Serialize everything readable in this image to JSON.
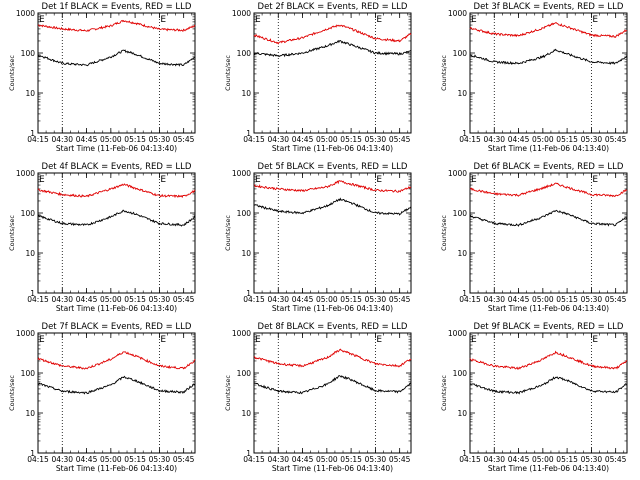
{
  "chart_data": [
    {
      "type": "line",
      "title": "Det 1f BLACK = Events, RED = LLD",
      "xlabel": "Start Time (11-Feb-06 04:13:40)",
      "ylabel": "Counts/sec",
      "yscale": "log",
      "ylim": [
        1,
        1000
      ],
      "xlim": [
        "04:15",
        "05:52"
      ],
      "x_ticks": [
        "04:15",
        "04:30",
        "04:45",
        "05:00",
        "05:15",
        "05:30",
        "05:45"
      ],
      "y_ticks": [
        "1",
        "10",
        "100",
        "1000"
      ],
      "markers": {
        "dotted_vlines": [
          "04:30",
          "05:30"
        ],
        "edge_labels": [
          {
            "text": "E",
            "x": "04:15"
          },
          {
            "text": "E",
            "x": "05:30"
          }
        ]
      },
      "series": [
        {
          "name": "LLD",
          "color": "#e00000",
          "x": [
            "04:15",
            "04:30",
            "04:45",
            "05:00",
            "05:08",
            "05:15",
            "05:30",
            "05:45",
            "05:52"
          ],
          "y": [
            500,
            400,
            360,
            480,
            650,
            560,
            390,
            370,
            480
          ]
        },
        {
          "name": "Events",
          "color": "#000000",
          "x": [
            "04:15",
            "04:30",
            "04:45",
            "05:00",
            "05:08",
            "05:15",
            "05:30",
            "05:45",
            "05:52"
          ],
          "y": [
            90,
            55,
            50,
            80,
            115,
            95,
            55,
            50,
            80
          ]
        }
      ]
    },
    {
      "type": "line",
      "title": "Det 2f BLACK = Events, RED = LLD",
      "xlabel": "Start Time (11-Feb-06 04:13:40)",
      "ylabel": "Counts/sec",
      "yscale": "log",
      "ylim": [
        1,
        1000
      ],
      "xlim": [
        "04:15",
        "05:52"
      ],
      "x_ticks": [
        "04:15",
        "04:30",
        "04:45",
        "05:00",
        "05:15",
        "05:30",
        "05:45"
      ],
      "y_ticks": [
        "1",
        "10",
        "100",
        "1000"
      ],
      "markers": {
        "dotted_vlines": [
          "04:30",
          "05:30"
        ],
        "edge_labels": [
          {
            "text": "E",
            "x": "04:15"
          },
          {
            "text": "E",
            "x": "05:30"
          }
        ]
      },
      "series": [
        {
          "name": "LLD",
          "color": "#e00000",
          "x": [
            "04:15",
            "04:30",
            "04:45",
            "05:00",
            "05:08",
            "05:15",
            "05:30",
            "05:45",
            "05:52"
          ],
          "y": [
            280,
            180,
            240,
            400,
            500,
            400,
            230,
            200,
            300
          ]
        },
        {
          "name": "Events",
          "color": "#000000",
          "x": [
            "04:15",
            "04:30",
            "04:45",
            "05:00",
            "05:08",
            "05:15",
            "05:30",
            "05:45",
            "05:52"
          ],
          "y": [
            100,
            85,
            100,
            150,
            200,
            160,
            100,
            95,
            110
          ]
        }
      ]
    },
    {
      "type": "line",
      "title": "Det 3f BLACK = Events, RED = LLD",
      "xlabel": "Start Time (11-Feb-06 04:13:40)",
      "ylabel": "Counts/sec",
      "yscale": "log",
      "ylim": [
        1,
        1000
      ],
      "xlim": [
        "04:15",
        "05:52"
      ],
      "x_ticks": [
        "04:15",
        "04:30",
        "04:45",
        "05:00",
        "05:15",
        "05:30",
        "05:45"
      ],
      "y_ticks": [
        "1",
        "10",
        "100",
        "1000"
      ],
      "markers": {
        "dotted_vlines": [
          "04:30",
          "05:30"
        ],
        "edge_labels": [
          {
            "text": "E",
            "x": "04:15"
          },
          {
            "text": "E",
            "x": "05:30"
          }
        ]
      },
      "series": [
        {
          "name": "LLD",
          "color": "#e00000",
          "x": [
            "04:15",
            "04:30",
            "04:45",
            "05:00",
            "05:08",
            "05:15",
            "05:30",
            "05:45",
            "05:52"
          ],
          "y": [
            420,
            300,
            270,
            420,
            560,
            450,
            280,
            260,
            380
          ]
        },
        {
          "name": "Events",
          "color": "#000000",
          "x": [
            "04:15",
            "04:30",
            "04:45",
            "05:00",
            "05:08",
            "05:15",
            "05:30",
            "05:45",
            "05:52"
          ],
          "y": [
            90,
            60,
            55,
            80,
            120,
            95,
            60,
            55,
            85
          ]
        }
      ]
    },
    {
      "type": "line",
      "title": "Det 4f BLACK = Events, RED = LLD",
      "xlabel": "Start Time (11-Feb-06 04:13:40)",
      "ylabel": "Counts/sec",
      "yscale": "log",
      "ylim": [
        1,
        1000
      ],
      "xlim": [
        "04:15",
        "05:52"
      ],
      "x_ticks": [
        "04:15",
        "04:30",
        "04:45",
        "05:00",
        "05:15",
        "05:30",
        "05:45"
      ],
      "y_ticks": [
        "1",
        "10",
        "100",
        "1000"
      ],
      "markers": {
        "dotted_vlines": [
          "04:30",
          "05:30"
        ],
        "edge_labels": [
          {
            "text": "E",
            "x": "04:15"
          },
          {
            "text": "E",
            "x": "05:30"
          }
        ]
      },
      "series": [
        {
          "name": "LLD",
          "color": "#e00000",
          "x": [
            "04:15",
            "04:30",
            "04:45",
            "05:00",
            "05:08",
            "05:15",
            "05:30",
            "05:45",
            "05:52"
          ],
          "y": [
            380,
            290,
            260,
            400,
            520,
            420,
            270,
            260,
            360
          ]
        },
        {
          "name": "Events",
          "color": "#000000",
          "x": [
            "04:15",
            "04:30",
            "04:45",
            "05:00",
            "05:08",
            "05:15",
            "05:30",
            "05:45",
            "05:52"
          ],
          "y": [
            85,
            55,
            50,
            80,
            115,
            95,
            55,
            50,
            80
          ]
        }
      ]
    },
    {
      "type": "line",
      "title": "Det 5f BLACK = Events, RED = LLD",
      "xlabel": "Start Time (11-Feb-06 04:13:40)",
      "ylabel": "Counts/sec",
      "yscale": "log",
      "ylim": [
        1,
        1000
      ],
      "xlim": [
        "04:15",
        "05:52"
      ],
      "x_ticks": [
        "04:15",
        "04:30",
        "04:45",
        "05:00",
        "05:15",
        "05:30",
        "05:45"
      ],
      "y_ticks": [
        "1",
        "10",
        "100",
        "1000"
      ],
      "markers": {
        "dotted_vlines": [
          "04:30",
          "05:30"
        ],
        "edge_labels": [
          {
            "text": "E",
            "x": "04:15"
          },
          {
            "text": "E",
            "x": "05:30"
          }
        ]
      },
      "series": [
        {
          "name": "LLD",
          "color": "#e00000",
          "x": [
            "04:15",
            "04:30",
            "04:45",
            "05:00",
            "05:08",
            "05:15",
            "05:30",
            "05:45",
            "05:52"
          ],
          "y": [
            480,
            400,
            360,
            450,
            620,
            530,
            370,
            350,
            450
          ]
        },
        {
          "name": "Events",
          "color": "#000000",
          "x": [
            "04:15",
            "04:30",
            "04:45",
            "05:00",
            "05:08",
            "05:15",
            "05:30",
            "05:45",
            "05:52"
          ],
          "y": [
            160,
            110,
            100,
            150,
            220,
            180,
            100,
            95,
            140
          ]
        }
      ]
    },
    {
      "type": "line",
      "title": "Det 6f BLACK = Events, RED = LLD",
      "xlabel": "Start Time (11-Feb-06 04:13:40)",
      "ylabel": "Counts/sec",
      "yscale": "log",
      "ylim": [
        1,
        1000
      ],
      "xlim": [
        "04:15",
        "05:52"
      ],
      "x_ticks": [
        "04:15",
        "04:30",
        "04:45",
        "05:00",
        "05:15",
        "05:30",
        "05:45"
      ],
      "y_ticks": [
        "1",
        "10",
        "100",
        "1000"
      ],
      "markers": {
        "dotted_vlines": [
          "04:30",
          "05:30"
        ],
        "edge_labels": [
          {
            "text": "E",
            "x": "04:15"
          },
          {
            "text": "E",
            "x": "05:30"
          }
        ]
      },
      "series": [
        {
          "name": "LLD",
          "color": "#e00000",
          "x": [
            "04:15",
            "04:30",
            "04:45",
            "05:00",
            "05:08",
            "05:15",
            "05:30",
            "05:45",
            "05:52"
          ],
          "y": [
            400,
            300,
            280,
            420,
            540,
            440,
            290,
            270,
            380
          ]
        },
        {
          "name": "Events",
          "color": "#000000",
          "x": [
            "04:15",
            "04:30",
            "04:45",
            "05:00",
            "05:08",
            "05:15",
            "05:30",
            "05:45",
            "05:52"
          ],
          "y": [
            85,
            55,
            50,
            80,
            115,
            95,
            55,
            50,
            80
          ]
        }
      ]
    },
    {
      "type": "line",
      "title": "Det 7f BLACK = Events, RED = LLD",
      "xlabel": "Start Time (11-Feb-06 04:13:40)",
      "ylabel": "Counts/sec",
      "yscale": "log",
      "ylim": [
        1,
        1000
      ],
      "xlim": [
        "04:15",
        "05:52"
      ],
      "x_ticks": [
        "04:15",
        "04:30",
        "04:45",
        "05:00",
        "05:15",
        "05:30",
        "05:45"
      ],
      "y_ticks": [
        "1",
        "10",
        "100",
        "1000"
      ],
      "markers": {
        "dotted_vlines": [
          "04:30",
          "05:30"
        ],
        "edge_labels": [
          {
            "text": "E",
            "x": "04:15"
          },
          {
            "text": "E",
            "x": "05:30"
          }
        ]
      },
      "series": [
        {
          "name": "LLD",
          "color": "#e00000",
          "x": [
            "04:15",
            "04:30",
            "04:45",
            "05:00",
            "05:08",
            "05:15",
            "05:30",
            "05:45",
            "05:52"
          ],
          "y": [
            230,
            150,
            130,
            220,
            340,
            270,
            150,
            130,
            210
          ]
        },
        {
          "name": "Events",
          "color": "#000000",
          "x": [
            "04:15",
            "04:30",
            "04:45",
            "05:00",
            "05:08",
            "05:15",
            "05:30",
            "05:45",
            "05:52"
          ],
          "y": [
            55,
            35,
            32,
            50,
            80,
            65,
            36,
            33,
            55
          ]
        }
      ]
    },
    {
      "type": "line",
      "title": "Det 8f BLACK = Events, RED = LLD",
      "xlabel": "Start Time (11-Feb-06 04:13:40)",
      "ylabel": "Counts/sec",
      "yscale": "log",
      "ylim": [
        1,
        1000
      ],
      "xlim": [
        "04:15",
        "05:52"
      ],
      "x_ticks": [
        "04:15",
        "04:30",
        "04:45",
        "05:00",
        "05:15",
        "05:30",
        "05:45"
      ],
      "y_ticks": [
        "1",
        "10",
        "100",
        "1000"
      ],
      "markers": {
        "dotted_vlines": [
          "04:30",
          "05:30"
        ],
        "edge_labels": [
          {
            "text": "E",
            "x": "04:15"
          },
          {
            "text": "E",
            "x": "05:30"
          }
        ]
      },
      "series": [
        {
          "name": "LLD",
          "color": "#e00000",
          "x": [
            "04:15",
            "04:30",
            "04:45",
            "05:00",
            "05:08",
            "05:15",
            "05:30",
            "05:45",
            "05:52"
          ],
          "y": [
            250,
            170,
            150,
            240,
            380,
            300,
            170,
            150,
            230
          ]
        },
        {
          "name": "Events",
          "color": "#000000",
          "x": [
            "04:15",
            "04:30",
            "04:45",
            "05:00",
            "05:08",
            "05:15",
            "05:30",
            "05:45",
            "05:52"
          ],
          "y": [
            55,
            35,
            32,
            52,
            85,
            68,
            36,
            34,
            55
          ]
        }
      ]
    },
    {
      "type": "line",
      "title": "Det 9f BLACK = Events, RED = LLD",
      "xlabel": "Start Time (11-Feb-06 04:13:40)",
      "ylabel": "Counts/sec",
      "yscale": "log",
      "ylim": [
        1,
        1000
      ],
      "xlim": [
        "04:15",
        "05:52"
      ],
      "x_ticks": [
        "04:15",
        "04:30",
        "04:45",
        "05:00",
        "05:15",
        "05:30",
        "05:45"
      ],
      "y_ticks": [
        "1",
        "10",
        "100",
        "1000"
      ],
      "markers": {
        "dotted_vlines": [
          "04:30",
          "05:30"
        ],
        "edge_labels": [
          {
            "text": "E",
            "x": "04:15"
          },
          {
            "text": "E",
            "x": "05:30"
          }
        ]
      },
      "series": [
        {
          "name": "LLD",
          "color": "#e00000",
          "x": [
            "04:15",
            "04:30",
            "04:45",
            "05:00",
            "05:08",
            "05:15",
            "05:30",
            "05:45",
            "05:52"
          ],
          "y": [
            220,
            150,
            130,
            220,
            330,
            260,
            150,
            130,
            200
          ]
        },
        {
          "name": "Events",
          "color": "#000000",
          "x": [
            "04:15",
            "04:30",
            "04:45",
            "05:00",
            "05:08",
            "05:15",
            "05:30",
            "05:45",
            "05:52"
          ],
          "y": [
            55,
            35,
            32,
            50,
            80,
            65,
            36,
            33,
            55
          ]
        }
      ]
    }
  ]
}
